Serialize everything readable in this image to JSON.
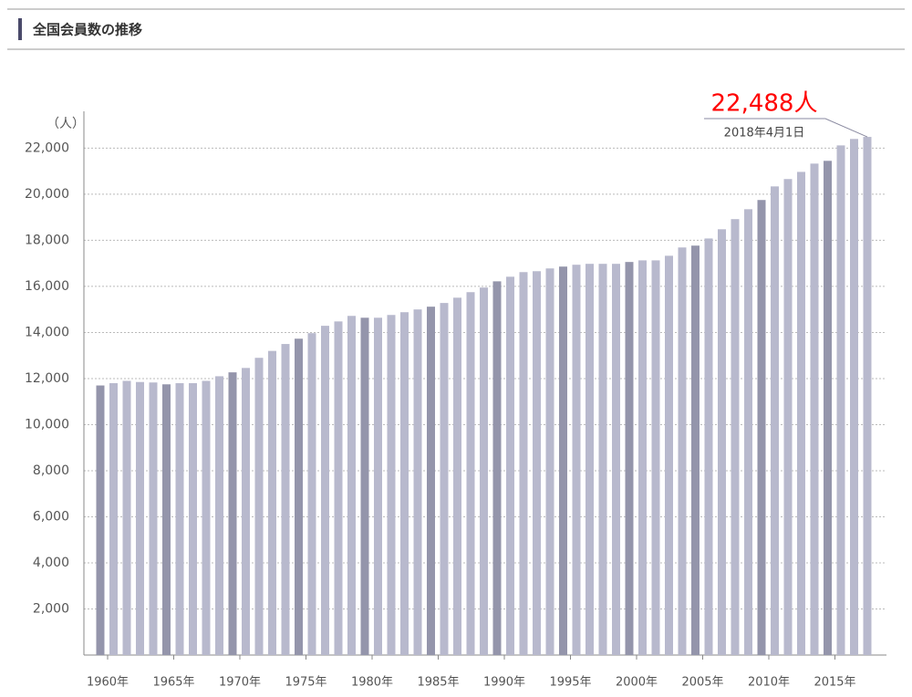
{
  "header": {
    "title": "全国会員数の推移"
  },
  "chart_data": {
    "type": "bar",
    "y_label": "（人）",
    "categories": [
      "1960年",
      null,
      null,
      null,
      null,
      "1965年",
      null,
      null,
      null,
      null,
      "1970年",
      null,
      null,
      null,
      null,
      "1975年",
      null,
      null,
      null,
      null,
      "1980年",
      null,
      null,
      null,
      null,
      "1985年",
      null,
      null,
      null,
      null,
      "1990年",
      null,
      null,
      null,
      null,
      "1995年",
      null,
      null,
      null,
      null,
      "2000年",
      null,
      null,
      null,
      null,
      "2005年",
      null,
      null,
      null,
      null,
      "2010年",
      null,
      null,
      null,
      null,
      "2015年",
      null,
      null,
      null
    ],
    "values": [
      11700,
      11800,
      11900,
      11850,
      11830,
      11750,
      11800,
      11800,
      11900,
      12100,
      12270,
      12460,
      12900,
      13200,
      13500,
      13730,
      13970,
      14290,
      14480,
      14720,
      14640,
      14640,
      14760,
      14880,
      15000,
      15120,
      15280,
      15510,
      15750,
      15950,
      16220,
      16420,
      16620,
      16660,
      16780,
      16860,
      16940,
      16980,
      16980,
      16980,
      17060,
      17130,
      17130,
      17330,
      17690,
      17770,
      18080,
      18480,
      18920,
      19350,
      19750,
      20340,
      20660,
      20970,
      21330,
      21450,
      22120,
      22400,
      22488
    ],
    "value_labels": [
      null,
      null,
      null,
      null,
      null,
      null,
      null,
      null,
      null,
      null,
      null,
      null,
      null,
      null,
      null,
      null,
      null,
      null,
      null,
      null,
      null,
      null,
      null,
      null,
      null,
      null,
      null,
      null,
      null,
      null,
      null,
      null,
      null,
      null,
      null,
      null,
      null,
      null,
      null,
      null,
      null,
      null,
      null,
      null,
      null,
      null,
      null,
      null,
      null,
      null,
      null,
      null,
      null,
      null,
      null,
      null,
      null,
      null,
      "22,488人"
    ],
    "annotation": "2018年4月1日",
    "color": "#b8b9cd",
    "accent_color": "#9495ab",
    "label_color": "#ff0000",
    "ylim": [
      0,
      23600
    ],
    "yticks": [
      {
        "value": 2000,
        "label": "2,000"
      },
      {
        "value": 4000,
        "label": "4,000"
      },
      {
        "value": 6000,
        "label": "6,000"
      },
      {
        "value": 8000,
        "label": "8,000"
      },
      {
        "value": 10000,
        "label": "10,000"
      },
      {
        "value": 12000,
        "label": "12,000"
      },
      {
        "value": 14000,
        "label": "14,000"
      },
      {
        "value": 16000,
        "label": "16,000"
      },
      {
        "value": 18000,
        "label": "18,000"
      },
      {
        "value": 20000,
        "label": "20,000"
      },
      {
        "value": 22000,
        "label": "22,000"
      }
    ],
    "grid": true
  }
}
